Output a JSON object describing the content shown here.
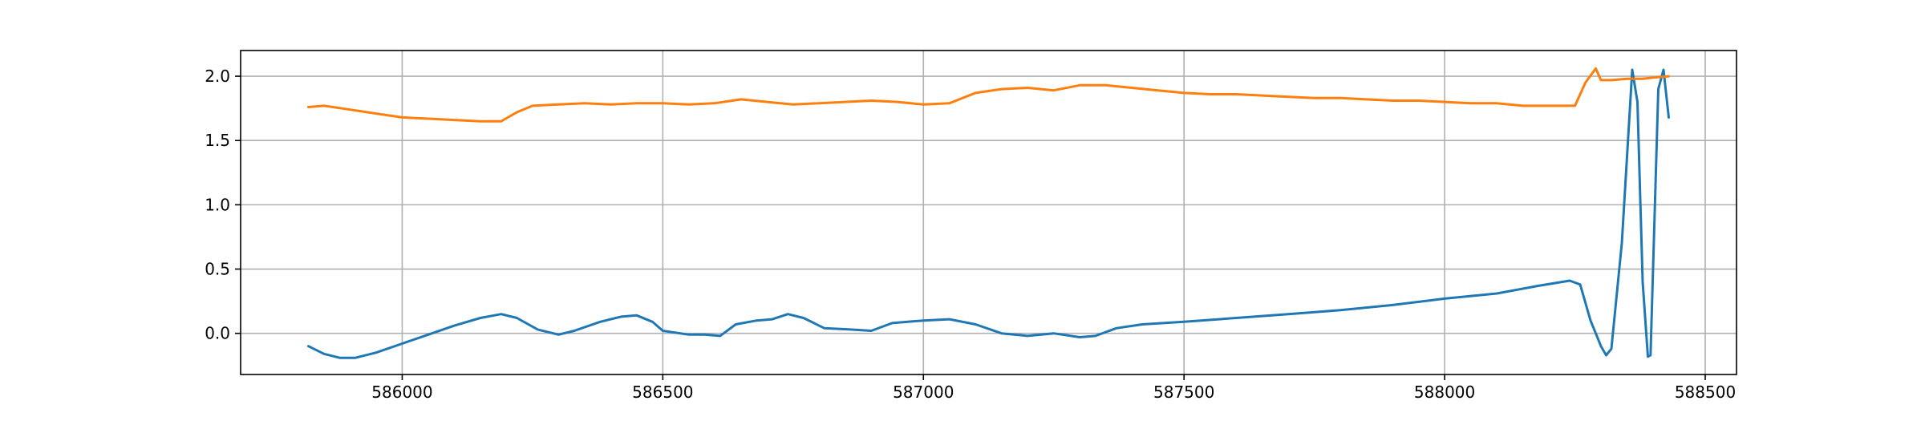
{
  "chart_data": {
    "type": "line",
    "title": "",
    "xlabel": "",
    "ylabel": "",
    "xlim": [
      585690,
      588560
    ],
    "ylim": [
      -0.32,
      2.2
    ],
    "grid": true,
    "legend": "none",
    "x_ticks": [
      586000,
      586500,
      587000,
      587500,
      588000,
      588500
    ],
    "y_ticks": [
      0.0,
      0.5,
      1.0,
      1.5,
      2.0
    ],
    "x_tick_labels": [
      "586000",
      "586500",
      "587000",
      "587500",
      "588000",
      "588500"
    ],
    "y_tick_labels": [
      "0.0",
      "0.5",
      "1.0",
      "1.5",
      "2.0"
    ],
    "series": [
      {
        "color": "#1f77b4",
        "x": [
          585820,
          585850,
          585880,
          585910,
          585950,
          586000,
          586050,
          586100,
          586150,
          586190,
          586220,
          586260,
          586300,
          586330,
          586380,
          586420,
          586450,
          586480,
          586500,
          586550,
          586580,
          586610,
          586640,
          586680,
          586710,
          586740,
          586770,
          586810,
          586860,
          586900,
          586940,
          587000,
          587050,
          587100,
          587150,
          587200,
          587250,
          587300,
          587330,
          587370,
          587420,
          587500,
          587600,
          587700,
          587800,
          587900,
          588000,
          588100,
          588180,
          588240,
          588260,
          588280,
          588300,
          588310,
          588320,
          588340,
          588360,
          588370,
          588380,
          588390,
          588395,
          588410,
          588420,
          588430
        ],
        "values": [
          -0.1,
          -0.16,
          -0.19,
          -0.19,
          -0.15,
          -0.08,
          -0.01,
          0.06,
          0.12,
          0.15,
          0.12,
          0.03,
          -0.01,
          0.02,
          0.09,
          0.13,
          0.14,
          0.09,
          0.02,
          -0.01,
          -0.01,
          -0.02,
          0.07,
          0.1,
          0.11,
          0.15,
          0.12,
          0.04,
          0.03,
          0.02,
          0.08,
          0.1,
          0.11,
          0.07,
          0.0,
          -0.02,
          0.0,
          -0.03,
          -0.02,
          0.04,
          0.07,
          0.09,
          0.12,
          0.15,
          0.18,
          0.22,
          0.27,
          0.31,
          0.37,
          0.41,
          0.38,
          0.1,
          -0.1,
          -0.17,
          -0.12,
          0.7,
          2.05,
          1.8,
          0.4,
          -0.18,
          -0.17,
          1.9,
          2.05,
          1.68
        ]
      },
      {
        "color": "#ff7f0e",
        "x": [
          585820,
          585850,
          585900,
          585950,
          586000,
          586050,
          586100,
          586150,
          586190,
          586220,
          586250,
          586300,
          586350,
          586400,
          586450,
          586500,
          586550,
          586600,
          586650,
          586700,
          586750,
          586800,
          586850,
          586900,
          586950,
          587000,
          587050,
          587100,
          587150,
          587200,
          587250,
          587300,
          587350,
          587400,
          587450,
          587500,
          587550,
          587600,
          587650,
          587700,
          587750,
          587800,
          587850,
          587900,
          587950,
          588000,
          588050,
          588100,
          588150,
          588200,
          588250,
          588270,
          588290,
          588300,
          588320,
          588350,
          588380,
          588400,
          588430
        ],
        "values": [
          1.76,
          1.77,
          1.74,
          1.71,
          1.68,
          1.67,
          1.66,
          1.65,
          1.65,
          1.72,
          1.77,
          1.78,
          1.79,
          1.78,
          1.79,
          1.79,
          1.78,
          1.79,
          1.82,
          1.8,
          1.78,
          1.79,
          1.8,
          1.81,
          1.8,
          1.78,
          1.79,
          1.87,
          1.9,
          1.91,
          1.89,
          1.93,
          1.93,
          1.91,
          1.89,
          1.87,
          1.86,
          1.86,
          1.85,
          1.84,
          1.83,
          1.83,
          1.82,
          1.81,
          1.81,
          1.8,
          1.79,
          1.79,
          1.77,
          1.77,
          1.77,
          1.95,
          2.06,
          1.97,
          1.97,
          1.98,
          1.98,
          1.99,
          2.0
        ]
      }
    ]
  }
}
